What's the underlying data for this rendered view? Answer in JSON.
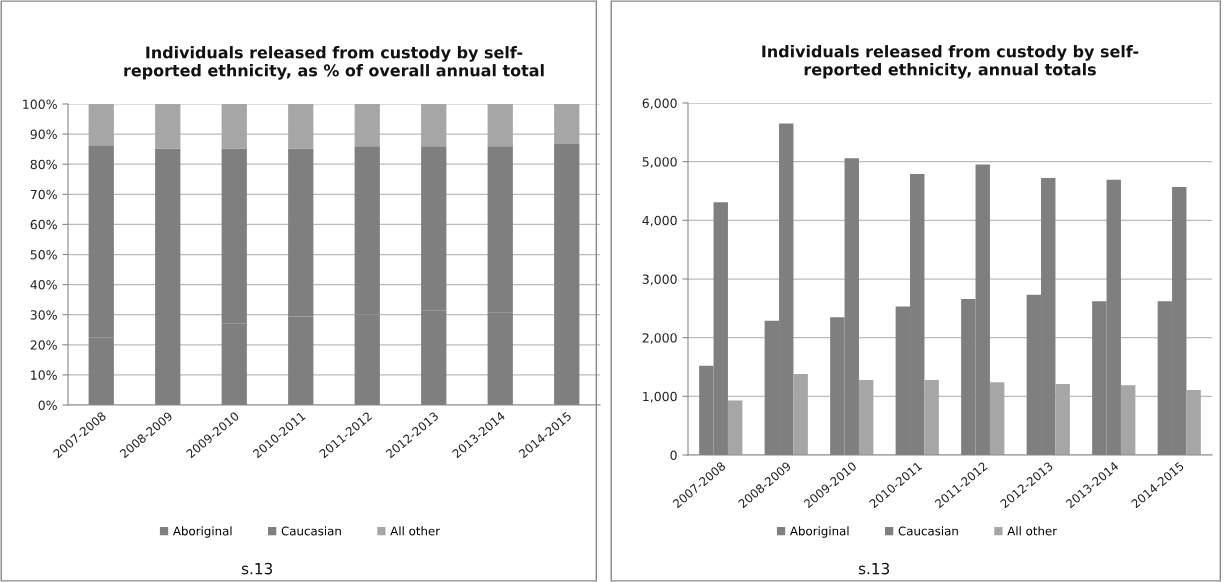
{
  "chart_data": [
    {
      "type": "bar",
      "title": "Individuals released from custody by self-\nreported ethnicity, as % of overall annual total",
      "categories": [
        "2007-2008",
        "2008-2009",
        "2009-2010",
        "2010-2011",
        "2011-2012",
        "2012-2013",
        "2013-2014",
        "2014-2015"
      ],
      "stacked": true,
      "series": [
        {
          "name": "Aboriginal",
          "color": "#7f7f7f",
          "values": [
            22.5,
            24.6,
            27.0,
            29.4,
            30.1,
            31.5,
            30.8,
            31.6
          ]
        },
        {
          "name": "Caucasian",
          "color": "#7f7f7f",
          "values": [
            63.8,
            60.6,
            58.2,
            55.7,
            55.9,
            54.5,
            55.2,
            55.1
          ]
        },
        {
          "name": "All other",
          "color": "#a6a6a6",
          "values": [
            13.7,
            14.8,
            14.8,
            14.9,
            14.0,
            14.0,
            14.0,
            13.3
          ]
        }
      ],
      "ylim": [
        0,
        100
      ],
      "yticks": [
        {
          "value": 0,
          "label": "0%"
        },
        {
          "value": 10,
          "label": "10%"
        },
        {
          "value": 20,
          "label": "20%"
        },
        {
          "value": 30,
          "label": "30%"
        },
        {
          "value": 40,
          "label": "40%"
        },
        {
          "value": 50,
          "label": "50%"
        },
        {
          "value": 60,
          "label": "60%"
        },
        {
          "value": 70,
          "label": "70%"
        },
        {
          "value": 80,
          "label": "80%"
        },
        {
          "value": 90,
          "label": "90%"
        },
        {
          "value": 100,
          "label": "100%"
        }
      ],
      "grid": "y",
      "legend": "bottom",
      "annotations": [
        "s.13"
      ]
    },
    {
      "type": "bar",
      "title": "Individuals released from custody by self-\nreported ethnicity, annual totals",
      "categories": [
        "2007-2008",
        "2008-2009",
        "2009-2010",
        "2010-2011",
        "2011-2012",
        "2012-2013",
        "2013-2014",
        "2014-2015"
      ],
      "series": [
        {
          "name": "Aboriginal",
          "color": "#7f7f7f",
          "values": [
            1520,
            2290,
            2350,
            2530,
            2660,
            2730,
            2620,
            2620
          ]
        },
        {
          "name": "Caucasian",
          "color": "#7f7f7f",
          "values": [
            4310,
            5650,
            5060,
            4790,
            4950,
            4720,
            4690,
            4570
          ]
        },
        {
          "name": "All other",
          "color": "#a6a6a6",
          "values": [
            930,
            1380,
            1280,
            1280,
            1240,
            1210,
            1190,
            1110
          ]
        }
      ],
      "ylim": [
        0,
        6000
      ],
      "yticks": [
        0,
        {
          "value": 1000,
          "label": "1,000"
        },
        {
          "value": 2000,
          "label": "2,000"
        },
        {
          "value": 3000,
          "label": "3,000"
        },
        {
          "value": 4000,
          "label": "4,000"
        },
        {
          "value": 5000,
          "label": "5,000"
        },
        {
          "value": 6000,
          "label": "6,000"
        }
      ],
      "grid": "y",
      "legend": "bottom",
      "annotations": [
        "s.13"
      ]
    }
  ]
}
